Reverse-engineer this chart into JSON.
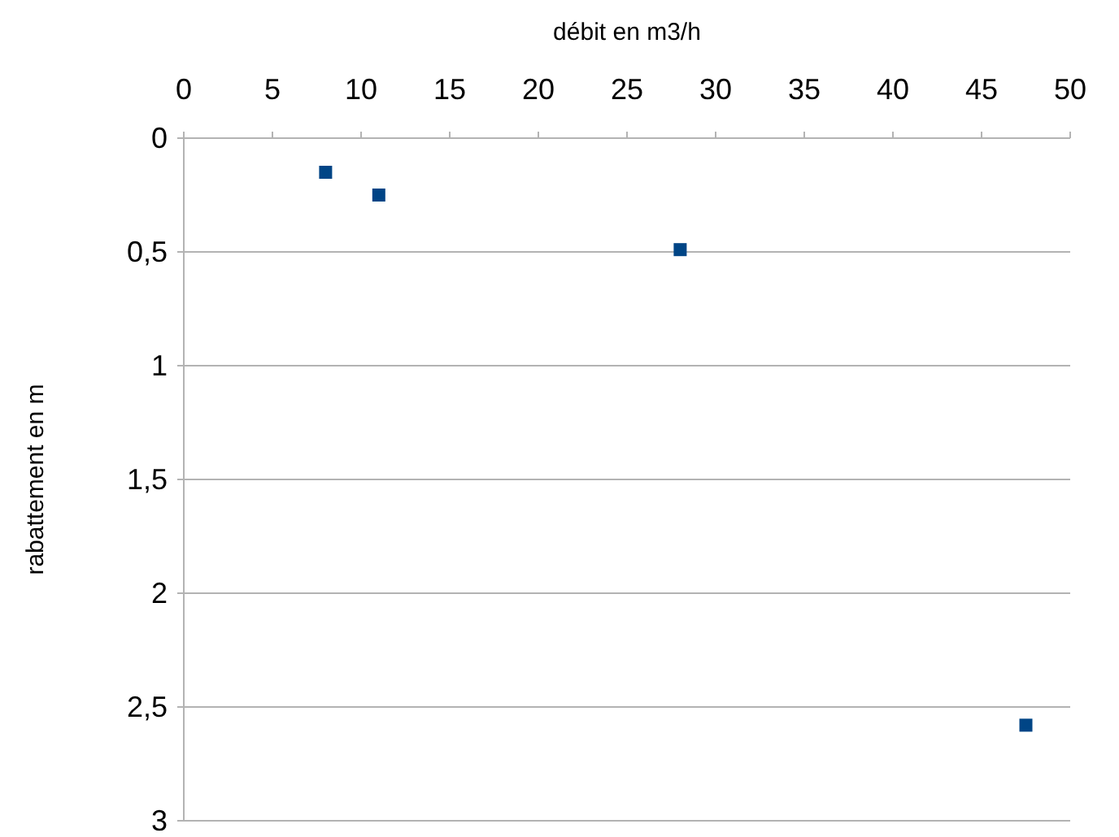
{
  "chart_data": {
    "type": "scatter",
    "xlabel": "débit en m3/h",
    "ylabel": "rabattement en m",
    "x": [
      8,
      11,
      28,
      47.5
    ],
    "series": [
      {
        "color": "#004586",
        "values": [
          0.15,
          0.25,
          0.49,
          2.58
        ]
      }
    ],
    "xlim": [
      0,
      50
    ],
    "xticks": [
      0,
      5,
      10,
      15,
      20,
      25,
      30,
      35,
      40,
      45,
      50
    ],
    "ylim": [
      3,
      0
    ],
    "yticks": [
      0,
      {
        "value": 0.5,
        "label": "0,5"
      },
      1,
      {
        "value": 1.5,
        "label": "1,5"
      },
      2,
      {
        "value": 2.5,
        "label": "2,5"
      },
      3
    ],
    "grid": "y",
    "marker": "square"
  }
}
